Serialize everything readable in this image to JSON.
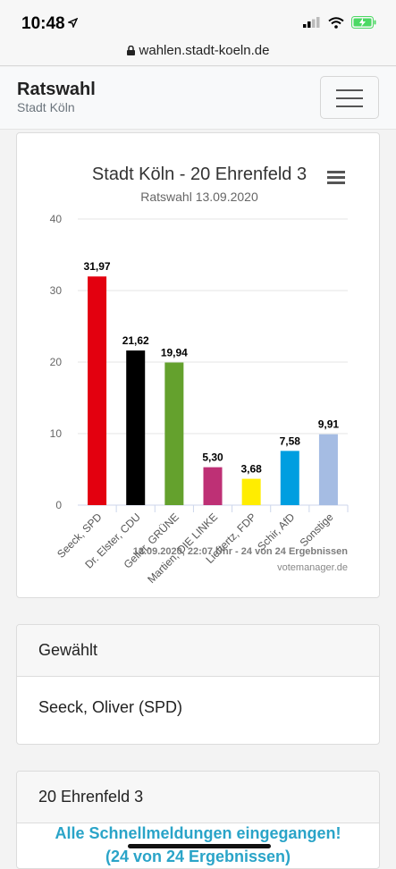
{
  "status_bar": {
    "time": "10:48"
  },
  "browser": {
    "url": "wahlen.stadt-koeln.de"
  },
  "navbar": {
    "title": "Ratswahl",
    "subtitle": "Stadt Köln"
  },
  "chart_data": {
    "type": "bar",
    "title": "Stadt Köln - 20 Ehrenfeld 3",
    "subtitle": "Ratswahl 13.09.2020",
    "categories": [
      "Seeck, SPD",
      "Dr. Elster, CDU",
      "Geller, GRÜNE",
      "Martien, DIE LINKE",
      "Lieftertz, FDP",
      "Schir, AfD",
      "Sonstige"
    ],
    "values": [
      31.97,
      21.62,
      19.94,
      5.3,
      3.68,
      7.58,
      9.91
    ],
    "value_labels": [
      "31,97",
      "21,62",
      "19,94",
      "5,30",
      "3,68",
      "7,58",
      "9,91"
    ],
    "colors": [
      "#e3000f",
      "#000000",
      "#64a12d",
      "#be3075",
      "#ffed00",
      "#009ee0",
      "#a5bce3"
    ],
    "ylim": [
      0,
      40
    ],
    "yticks": [
      0,
      10,
      20,
      30,
      40
    ],
    "grid": true,
    "footer": "13.09.2020, 22:07 Uhr - 24 von 24 Ergebnissen",
    "credit": "votemanager.de"
  },
  "gewaehlt": {
    "header": "Gewählt",
    "value": "Seeck, Oliver (SPD)"
  },
  "bezirk": {
    "header": "20 Ehrenfeld 3",
    "notice": "Alle Schnellmeldungen eingegangen!",
    "notice_line2": "(24 von 24 Ergebnissen)"
  }
}
